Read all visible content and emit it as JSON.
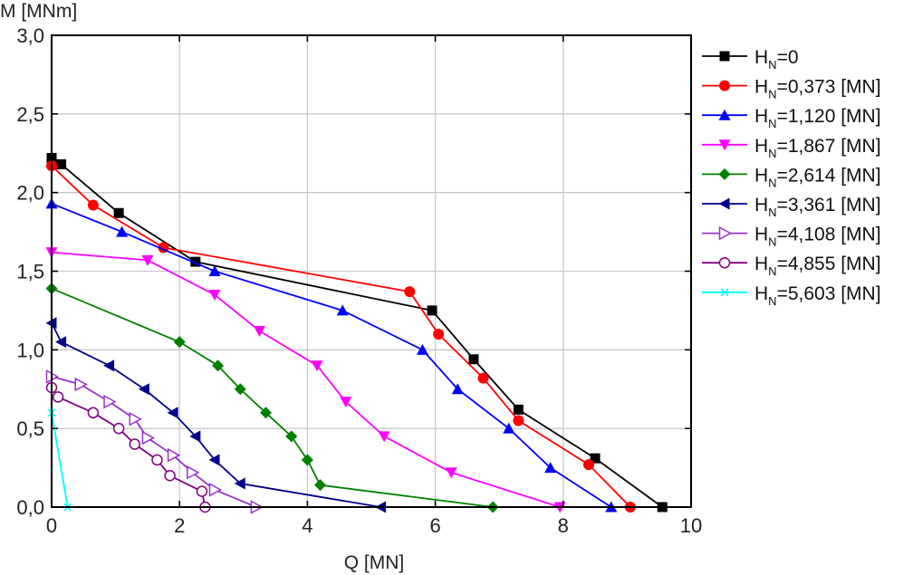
{
  "chart_data": {
    "type": "line",
    "xlabel": "Q [MN]",
    "ylabel": "M [MNm]",
    "xlim": [
      0,
      10
    ],
    "ylim": [
      0,
      3.0
    ],
    "x_ticks": [
      0,
      2,
      4,
      6,
      8,
      10
    ],
    "x_tick_labels": [
      "0",
      "2",
      "4",
      "6",
      "8",
      "10"
    ],
    "y_ticks": [
      0,
      0.5,
      1.0,
      1.5,
      2.0,
      2.5,
      3.0
    ],
    "y_tick_labels": [
      "0,0",
      "0,5",
      "1,0",
      "1,5",
      "2,0",
      "2,5",
      "3,0"
    ],
    "grid": true,
    "legend_position": "right",
    "series": [
      {
        "name": "H_N=0",
        "legend_main": "H",
        "legend_sub": "N",
        "legend_rest": "=0",
        "color": "#000000",
        "marker": "square",
        "points": [
          [
            0.0,
            2.22
          ],
          [
            0.15,
            2.18
          ],
          [
            1.05,
            1.87
          ],
          [
            2.25,
            1.56
          ],
          [
            5.95,
            1.25
          ],
          [
            6.6,
            0.94
          ],
          [
            7.3,
            0.62
          ],
          [
            8.5,
            0.31
          ],
          [
            9.55,
            0.0
          ]
        ]
      },
      {
        "name": "H_N=0,373 [MN]",
        "legend_main": "H",
        "legend_sub": "N",
        "legend_rest": "=0,373 [MN]",
        "color": "#ff0000",
        "marker": "circle",
        "points": [
          [
            0.0,
            2.17
          ],
          [
            0.65,
            1.92
          ],
          [
            1.75,
            1.65
          ],
          [
            5.6,
            1.37
          ],
          [
            6.05,
            1.1
          ],
          [
            6.75,
            0.82
          ],
          [
            7.3,
            0.55
          ],
          [
            8.4,
            0.27
          ],
          [
            9.05,
            0.0
          ]
        ]
      },
      {
        "name": "H_N=1,120 [MN]",
        "legend_main": "H",
        "legend_sub": "N",
        "legend_rest": "=1,120 [MN]",
        "color": "#0000ff",
        "marker": "triangle-up",
        "points": [
          [
            0.0,
            1.93
          ],
          [
            1.1,
            1.75
          ],
          [
            2.55,
            1.5
          ],
          [
            4.55,
            1.25
          ],
          [
            5.8,
            1.0
          ],
          [
            6.35,
            0.75
          ],
          [
            7.15,
            0.5
          ],
          [
            7.8,
            0.25
          ],
          [
            8.75,
            0.0
          ]
        ]
      },
      {
        "name": "H_N=1,867 [MN]",
        "legend_main": "H",
        "legend_sub": "N",
        "legend_rest": "=1,867 [MN]",
        "color": "#ff00ff",
        "marker": "triangle-down",
        "points": [
          [
            0.0,
            1.62
          ],
          [
            1.5,
            1.57
          ],
          [
            2.55,
            1.35
          ],
          [
            3.25,
            1.12
          ],
          [
            4.15,
            0.9
          ],
          [
            4.6,
            0.67
          ],
          [
            5.2,
            0.45
          ],
          [
            6.25,
            0.22
          ],
          [
            7.95,
            0.0
          ]
        ]
      },
      {
        "name": "H_N=2,614 [MN]",
        "legend_main": "H",
        "legend_sub": "N",
        "legend_rest": "=2,614 [MN]",
        "color": "#008000",
        "marker": "diamond",
        "points": [
          [
            0.0,
            1.39
          ],
          [
            2.0,
            1.05
          ],
          [
            2.6,
            0.9
          ],
          [
            2.95,
            0.75
          ],
          [
            3.35,
            0.6
          ],
          [
            3.75,
            0.45
          ],
          [
            4.0,
            0.3
          ],
          [
            4.2,
            0.14
          ],
          [
            6.9,
            0.0
          ]
        ]
      },
      {
        "name": "H_N=3,361 [MN]",
        "legend_main": "H",
        "legend_sub": "N",
        "legend_rest": "=3,361 [MN]",
        "color": "#00008b",
        "marker": "triangle-left",
        "points": [
          [
            0.0,
            1.17
          ],
          [
            0.15,
            1.05
          ],
          [
            0.9,
            0.9
          ],
          [
            1.45,
            0.75
          ],
          [
            1.9,
            0.6
          ],
          [
            2.25,
            0.45
          ],
          [
            2.55,
            0.3
          ],
          [
            2.95,
            0.15
          ],
          [
            5.15,
            0.0
          ]
        ]
      },
      {
        "name": "H_N=4,108 [MN]",
        "legend_main": "H",
        "legend_sub": "N",
        "legend_rest": "=4,108 [MN]",
        "color": "#9932cc",
        "marker": "triangle-right-open",
        "points": [
          [
            0.0,
            0.83
          ],
          [
            0.45,
            0.78
          ],
          [
            0.9,
            0.67
          ],
          [
            1.3,
            0.56
          ],
          [
            1.5,
            0.44
          ],
          [
            1.9,
            0.33
          ],
          [
            2.2,
            0.22
          ],
          [
            2.55,
            0.11
          ],
          [
            3.2,
            0.0
          ]
        ]
      },
      {
        "name": "H_N=4,855 [MN]",
        "legend_main": "H",
        "legend_sub": "N",
        "legend_rest": "=4,855 [MN]",
        "color": "#800080",
        "marker": "circle-open",
        "points": [
          [
            0.0,
            0.76
          ],
          [
            0.1,
            0.7
          ],
          [
            0.65,
            0.6
          ],
          [
            1.05,
            0.5
          ],
          [
            1.3,
            0.4
          ],
          [
            1.65,
            0.3
          ],
          [
            1.85,
            0.2
          ],
          [
            2.35,
            0.1
          ],
          [
            2.4,
            0.0
          ]
        ]
      },
      {
        "name": "H_N=5,603 [MN]",
        "legend_main": "H",
        "legend_sub": "N",
        "legend_rest": "=5,603 [MN]",
        "color": "#00ffff",
        "marker": "x",
        "points": [
          [
            0.0,
            0.6
          ],
          [
            0.25,
            0.0
          ]
        ]
      }
    ]
  }
}
